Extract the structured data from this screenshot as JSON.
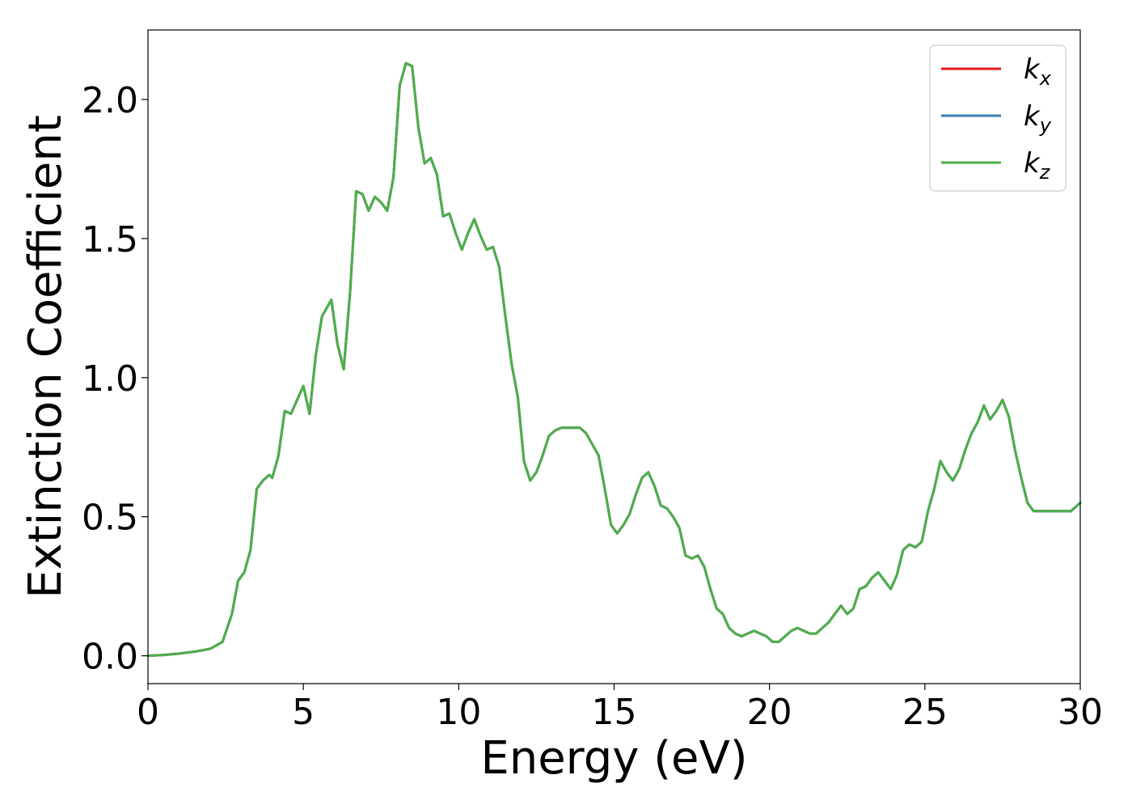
{
  "chart_data": {
    "type": "line",
    "title": "",
    "xlabel": "Energy (eV)",
    "ylabel": "Extinction Coefficient",
    "xlim": [
      0,
      30
    ],
    "ylim": [
      -0.1,
      2.25
    ],
    "xticks": [
      0,
      5,
      10,
      15,
      20,
      25,
      30
    ],
    "xtick_labels": [
      "0",
      "5",
      "10",
      "15",
      "20",
      "25",
      "30"
    ],
    "yticks": [
      0.0,
      0.5,
      1.0,
      1.5,
      2.0
    ],
    "ytick_labels": [
      "0.0",
      "0.5",
      "1.0",
      "1.5",
      "2.0"
    ],
    "grid": false,
    "legend_position": "top-right",
    "x": [
      0,
      0.5,
      1.0,
      1.5,
      2.0,
      2.4,
      2.7,
      2.9,
      3.1,
      3.3,
      3.5,
      3.7,
      3.9,
      4.0,
      4.2,
      4.4,
      4.6,
      4.8,
      5.0,
      5.2,
      5.4,
      5.6,
      5.9,
      6.1,
      6.3,
      6.5,
      6.7,
      6.9,
      7.1,
      7.3,
      7.5,
      7.7,
      7.9,
      8.1,
      8.3,
      8.5,
      8.7,
      8.9,
      9.1,
      9.3,
      9.5,
      9.7,
      9.9,
      10.1,
      10.3,
      10.5,
      10.7,
      10.9,
      11.1,
      11.3,
      11.5,
      11.7,
      11.9,
      12.1,
      12.3,
      12.5,
      12.7,
      12.9,
      13.1,
      13.3,
      13.5,
      13.7,
      13.9,
      14.1,
      14.3,
      14.5,
      14.7,
      14.9,
      15.1,
      15.3,
      15.5,
      15.7,
      15.9,
      16.1,
      16.3,
      16.5,
      16.7,
      16.9,
      17.1,
      17.3,
      17.5,
      17.7,
      17.9,
      18.1,
      18.3,
      18.5,
      18.7,
      18.9,
      19.1,
      19.3,
      19.5,
      19.7,
      19.9,
      20.1,
      20.3,
      20.5,
      20.7,
      20.9,
      21.1,
      21.3,
      21.5,
      21.7,
      21.9,
      22.1,
      22.3,
      22.5,
      22.7,
      22.9,
      23.1,
      23.3,
      23.5,
      23.7,
      23.9,
      24.1,
      24.3,
      24.5,
      24.7,
      24.9,
      25.1,
      25.3,
      25.5,
      25.7,
      25.9,
      26.1,
      26.3,
      26.5,
      26.7,
      26.9,
      27.1,
      27.3,
      27.5,
      27.7,
      27.9,
      28.1,
      28.3,
      28.5,
      28.7,
      28.9,
      29.1,
      29.3,
      29.5,
      29.7,
      30.0
    ],
    "series": [
      {
        "name": "k_x",
        "color": "#e41a1c",
        "values": [
          0.0,
          0.003,
          0.008,
          0.015,
          0.025,
          0.05,
          0.15,
          0.27,
          0.3,
          0.38,
          0.6,
          0.63,
          0.65,
          0.64,
          0.72,
          0.88,
          0.87,
          0.92,
          0.97,
          0.87,
          1.08,
          1.22,
          1.28,
          1.12,
          1.03,
          1.3,
          1.67,
          1.66,
          1.6,
          1.65,
          1.63,
          1.6,
          1.72,
          2.05,
          2.13,
          2.12,
          1.9,
          1.77,
          1.79,
          1.73,
          1.58,
          1.59,
          1.52,
          1.46,
          1.52,
          1.57,
          1.51,
          1.46,
          1.47,
          1.4,
          1.22,
          1.05,
          0.93,
          0.7,
          0.63,
          0.66,
          0.72,
          0.79,
          0.81,
          0.82,
          0.82,
          0.82,
          0.82,
          0.8,
          0.76,
          0.72,
          0.6,
          0.47,
          0.44,
          0.47,
          0.51,
          0.58,
          0.64,
          0.66,
          0.61,
          0.54,
          0.53,
          0.5,
          0.46,
          0.36,
          0.35,
          0.36,
          0.32,
          0.24,
          0.17,
          0.15,
          0.1,
          0.08,
          0.07,
          0.08,
          0.09,
          0.08,
          0.07,
          0.05,
          0.05,
          0.07,
          0.09,
          0.1,
          0.09,
          0.08,
          0.08,
          0.1,
          0.12,
          0.15,
          0.18,
          0.15,
          0.17,
          0.24,
          0.25,
          0.28,
          0.3,
          0.27,
          0.24,
          0.29,
          0.38,
          0.4,
          0.39,
          0.41,
          0.52,
          0.6,
          0.7,
          0.66,
          0.63,
          0.67,
          0.74,
          0.8,
          0.84,
          0.9,
          0.85,
          0.88,
          0.92,
          0.86,
          0.74,
          0.64,
          0.55,
          0.52,
          0.52,
          0.52,
          0.52,
          0.52,
          0.52,
          0.52,
          0.55
        ]
      },
      {
        "name": "k_y",
        "color": "#377eb8",
        "values": [
          0.0,
          0.003,
          0.008,
          0.015,
          0.025,
          0.05,
          0.15,
          0.27,
          0.3,
          0.38,
          0.6,
          0.63,
          0.65,
          0.64,
          0.72,
          0.88,
          0.87,
          0.92,
          0.97,
          0.87,
          1.08,
          1.22,
          1.28,
          1.12,
          1.03,
          1.3,
          1.67,
          1.66,
          1.6,
          1.65,
          1.63,
          1.6,
          1.72,
          2.05,
          2.13,
          2.12,
          1.9,
          1.77,
          1.79,
          1.73,
          1.58,
          1.59,
          1.52,
          1.46,
          1.52,
          1.57,
          1.51,
          1.46,
          1.47,
          1.4,
          1.22,
          1.05,
          0.93,
          0.7,
          0.63,
          0.66,
          0.72,
          0.79,
          0.81,
          0.82,
          0.82,
          0.82,
          0.82,
          0.8,
          0.76,
          0.72,
          0.6,
          0.47,
          0.44,
          0.47,
          0.51,
          0.58,
          0.64,
          0.66,
          0.61,
          0.54,
          0.53,
          0.5,
          0.46,
          0.36,
          0.35,
          0.36,
          0.32,
          0.24,
          0.17,
          0.15,
          0.1,
          0.08,
          0.07,
          0.08,
          0.09,
          0.08,
          0.07,
          0.05,
          0.05,
          0.07,
          0.09,
          0.1,
          0.09,
          0.08,
          0.08,
          0.1,
          0.12,
          0.15,
          0.18,
          0.15,
          0.17,
          0.24,
          0.25,
          0.28,
          0.3,
          0.27,
          0.24,
          0.29,
          0.38,
          0.4,
          0.39,
          0.41,
          0.52,
          0.6,
          0.7,
          0.66,
          0.63,
          0.67,
          0.74,
          0.8,
          0.84,
          0.9,
          0.85,
          0.88,
          0.92,
          0.86,
          0.74,
          0.64,
          0.55,
          0.52,
          0.52,
          0.52,
          0.52,
          0.52,
          0.52,
          0.52,
          0.55
        ]
      },
      {
        "name": "k_z",
        "color": "#4daf4a",
        "values": [
          0.0,
          0.003,
          0.008,
          0.015,
          0.025,
          0.05,
          0.15,
          0.27,
          0.3,
          0.38,
          0.6,
          0.63,
          0.65,
          0.64,
          0.72,
          0.88,
          0.87,
          0.92,
          0.97,
          0.87,
          1.08,
          1.22,
          1.28,
          1.12,
          1.03,
          1.3,
          1.67,
          1.66,
          1.6,
          1.65,
          1.63,
          1.6,
          1.72,
          2.05,
          2.13,
          2.12,
          1.9,
          1.77,
          1.79,
          1.73,
          1.58,
          1.59,
          1.52,
          1.46,
          1.52,
          1.57,
          1.51,
          1.46,
          1.47,
          1.4,
          1.22,
          1.05,
          0.93,
          0.7,
          0.63,
          0.66,
          0.72,
          0.79,
          0.81,
          0.82,
          0.82,
          0.82,
          0.82,
          0.8,
          0.76,
          0.72,
          0.6,
          0.47,
          0.44,
          0.47,
          0.51,
          0.58,
          0.64,
          0.66,
          0.61,
          0.54,
          0.53,
          0.5,
          0.46,
          0.36,
          0.35,
          0.36,
          0.32,
          0.24,
          0.17,
          0.15,
          0.1,
          0.08,
          0.07,
          0.08,
          0.09,
          0.08,
          0.07,
          0.05,
          0.05,
          0.07,
          0.09,
          0.1,
          0.09,
          0.08,
          0.08,
          0.1,
          0.12,
          0.15,
          0.18,
          0.15,
          0.17,
          0.24,
          0.25,
          0.28,
          0.3,
          0.27,
          0.24,
          0.29,
          0.38,
          0.4,
          0.39,
          0.41,
          0.52,
          0.6,
          0.7,
          0.66,
          0.63,
          0.67,
          0.74,
          0.8,
          0.84,
          0.9,
          0.85,
          0.88,
          0.92,
          0.86,
          0.74,
          0.64,
          0.55,
          0.52,
          0.52,
          0.52,
          0.52,
          0.52,
          0.52,
          0.52,
          0.55
        ]
      }
    ],
    "legend": [
      {
        "base": "k",
        "sub": "x",
        "color": "#e41a1c"
      },
      {
        "base": "k",
        "sub": "y",
        "color": "#377eb8"
      },
      {
        "base": "k",
        "sub": "z",
        "color": "#4daf4a"
      }
    ]
  }
}
